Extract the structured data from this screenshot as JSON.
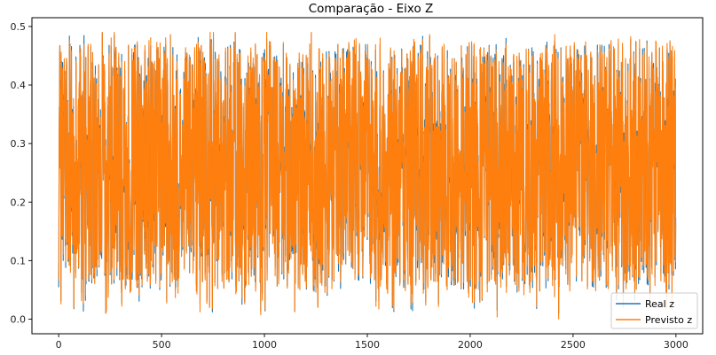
{
  "chart_data": {
    "type": "line",
    "title": "Comparação - Eixo Z",
    "xlabel": "",
    "ylabel": "",
    "xlim": [
      -130,
      3130
    ],
    "ylim": [
      -0.025,
      0.515
    ],
    "xticks": [
      0,
      500,
      1000,
      1500,
      2000,
      2500,
      3000
    ],
    "xtick_labels": [
      "0",
      "500",
      "1000",
      "1500",
      "2000",
      "2500",
      "3000"
    ],
    "yticks": [
      0.0,
      0.1,
      0.2,
      0.3,
      0.4,
      0.5
    ],
    "ytick_labels": [
      "0.0",
      "0.1",
      "0.2",
      "0.3",
      "0.4",
      "0.5"
    ],
    "grid": false,
    "legend_position": "lower-right",
    "n_points": 3000,
    "value_range_observed": [
      0.0,
      0.49
    ],
    "series": [
      {
        "name": "Real z",
        "color": "#1f77b4"
      },
      {
        "name": "Previsto z",
        "color": "#ff7f0e"
      }
    ]
  }
}
